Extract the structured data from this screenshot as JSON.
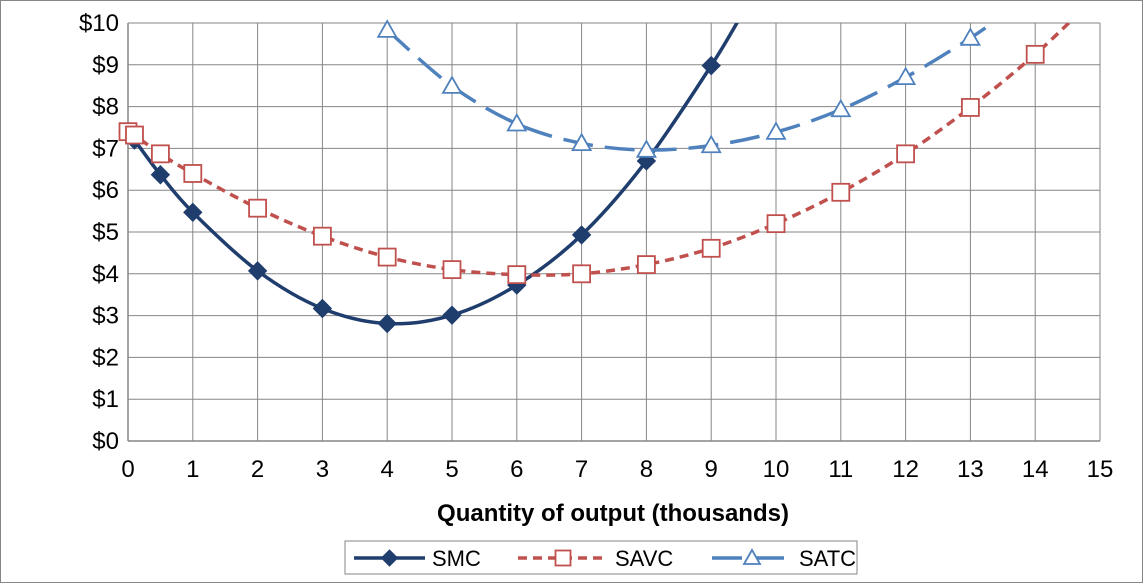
{
  "chart_data": {
    "type": "line",
    "title": "",
    "xlabel": "Quantity of output (thousands)",
    "ylabel": "",
    "xlim": [
      0,
      15
    ],
    "ylim": [
      0,
      10
    ],
    "x_ticks": [
      "0",
      "1",
      "2",
      "3",
      "4",
      "5",
      "6",
      "7",
      "8",
      "9",
      "10",
      "11",
      "12",
      "13",
      "14",
      "15"
    ],
    "y_ticks": [
      "$0",
      "$1",
      "$2",
      "$3",
      "$4",
      "$5",
      "$6",
      "$7",
      "$8",
      "$9",
      "$10"
    ],
    "grid": true,
    "legend": "bottom",
    "series": [
      {
        "name": "SMC",
        "color": "#1f3d6d",
        "marker": "diamond",
        "line_style": "solid",
        "points": [
          [
            0,
            7.4
          ],
          [
            0.1,
            7.2
          ],
          [
            0.5,
            6.37
          ],
          [
            1,
            5.47
          ],
          [
            2,
            4.07
          ],
          [
            3,
            3.17
          ],
          [
            4,
            2.81
          ],
          [
            5,
            3.01
          ],
          [
            6,
            3.73
          ],
          [
            7,
            4.93
          ],
          [
            8,
            6.7
          ],
          [
            9,
            8.98
          ]
        ],
        "curve_extension": [
          [
            9.5,
            10.28
          ]
        ]
      },
      {
        "name": "SAVC",
        "color": "#c0504d",
        "marker": "square",
        "line_style": "dashed",
        "points": [
          [
            0,
            7.4
          ],
          [
            0.1,
            7.32
          ],
          [
            0.5,
            6.87
          ],
          [
            1,
            6.4
          ],
          [
            2,
            5.57
          ],
          [
            3,
            4.9
          ],
          [
            4,
            4.4
          ],
          [
            5,
            4.1
          ],
          [
            6,
            3.98
          ],
          [
            7,
            4.0
          ],
          [
            8,
            4.22
          ],
          [
            9,
            4.61
          ],
          [
            10,
            5.2
          ],
          [
            11,
            5.95
          ],
          [
            12,
            6.87
          ],
          [
            13,
            7.98
          ],
          [
            14,
            9.25
          ]
        ],
        "curve_extension": [
          [
            14.75,
            10.35
          ]
        ]
      },
      {
        "name": "SATC",
        "color": "#4f81bd",
        "marker": "triangle",
        "line_style": "longdash",
        "points": [
          [
            4,
            9.83
          ],
          [
            5,
            8.49
          ],
          [
            6,
            7.59
          ],
          [
            7,
            7.12
          ],
          [
            8,
            6.96
          ],
          [
            9,
            7.07
          ],
          [
            10,
            7.39
          ],
          [
            11,
            7.93
          ],
          [
            12,
            8.7
          ],
          [
            13,
            9.64
          ]
        ],
        "curve_extension": [
          [
            13.6,
            10.3
          ]
        ]
      }
    ]
  }
}
